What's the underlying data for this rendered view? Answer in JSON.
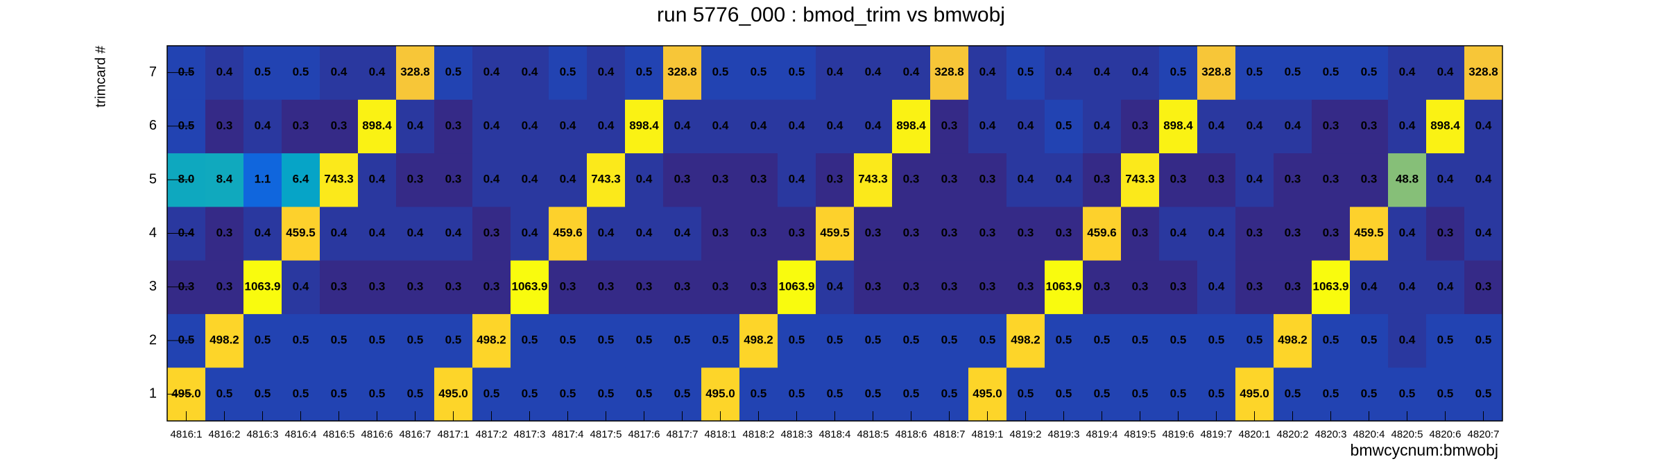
{
  "chart_data": {
    "type": "heatmap",
    "title": "run 5776_000 : bmod_trim vs bmwobj",
    "x_label": "bmwcycnum:bmwobj",
    "y_label": "trimcard #",
    "log_z": true,
    "categories": [
      "4816:1",
      "4816:2",
      "4816:3",
      "4816:4",
      "4816:5",
      "4816:6",
      "4816:7",
      "4817:1",
      "4817:2",
      "4817:3",
      "4817:4",
      "4817:5",
      "4817:6",
      "4817:7",
      "4818:1",
      "4818:2",
      "4818:3",
      "4818:4",
      "4818:5",
      "4818:6",
      "4818:7",
      "4819:1",
      "4819:2",
      "4819:3",
      "4819:4",
      "4819:5",
      "4819:6",
      "4819:7",
      "4820:1",
      "4820:2",
      "4820:3",
      "4820:4",
      "4820:5",
      "4820:6",
      "4820:7"
    ],
    "rows": [
      {
        "label": "1",
        "values": [
          495,
          0.5,
          0.5,
          0.5,
          0.5,
          0.5,
          0.5,
          495,
          0.5,
          0.5,
          0.5,
          0.5,
          0.5,
          0.5,
          495,
          0.5,
          0.5,
          0.5,
          0.5,
          0.5,
          0.5,
          495,
          0.5,
          0.5,
          0.5,
          0.5,
          0.5,
          0.5,
          495,
          0.5,
          0.5,
          0.5,
          0.5,
          0.5,
          0.5
        ],
        "value_labels": [
          "495.0",
          "0.5",
          "0.5",
          "0.5",
          "0.5",
          "0.5",
          "0.5",
          "495.0",
          "0.5",
          "0.5",
          "0.5",
          "0.5",
          "0.5",
          "0.5",
          "495.0",
          "0.5",
          "0.5",
          "0.5",
          "0.5",
          "0.5",
          "0.5",
          "495.0",
          "0.5",
          "0.5",
          "0.5",
          "0.5",
          "0.5",
          "0.5",
          "495.0",
          "0.5",
          "0.5",
          "0.5",
          "0.5",
          "0.5",
          "0.5"
        ]
      },
      {
        "label": "2",
        "values": [
          0.5,
          498.2,
          0.5,
          0.5,
          0.5,
          0.5,
          0.5,
          0.5,
          498.2,
          0.5,
          0.5,
          0.5,
          0.5,
          0.5,
          0.5,
          498.2,
          0.5,
          0.5,
          0.5,
          0.5,
          0.5,
          0.5,
          498.2,
          0.5,
          0.5,
          0.5,
          0.5,
          0.5,
          0.5,
          498.2,
          0.5,
          0.5,
          0.4,
          0.5,
          0.5
        ]
      },
      {
        "label": "3",
        "values": [
          0.3,
          0.3,
          1063.9,
          0.4,
          0.3,
          0.3,
          0.3,
          0.3,
          0.3,
          1063.9,
          0.3,
          0.3,
          0.3,
          0.3,
          0.3,
          0.3,
          1063.9,
          0.4,
          0.3,
          0.3,
          0.3,
          0.3,
          0.3,
          1063.9,
          0.3,
          0.3,
          0.3,
          0.4,
          0.3,
          0.3,
          1063.9,
          0.4,
          0.4,
          0.4,
          0.3
        ]
      },
      {
        "label": "4",
        "values": [
          0.4,
          0.3,
          0.4,
          459.5,
          0.4,
          0.4,
          0.4,
          0.4,
          0.3,
          0.4,
          459.6,
          0.4,
          0.4,
          0.4,
          0.3,
          0.3,
          0.3,
          459.5,
          0.3,
          0.3,
          0.3,
          0.3,
          0.3,
          0.3,
          459.6,
          0.3,
          0.4,
          0.4,
          0.3,
          0.3,
          0.3,
          459.5,
          0.4,
          0.3,
          0.4
        ]
      },
      {
        "label": "5",
        "values": [
          8,
          8.4,
          1.1,
          6.4,
          743.3,
          0.4,
          0.3,
          0.3,
          0.4,
          0.4,
          0.4,
          743.3,
          0.4,
          0.3,
          0.3,
          0.3,
          0.4,
          0.3,
          743.3,
          0.3,
          0.3,
          0.3,
          0.4,
          0.4,
          0.3,
          743.3,
          0.3,
          0.3,
          0.4,
          0.3,
          0.3,
          0.3,
          48.8,
          0.4,
          0.4
        ],
        "value_labels": [
          "8.0",
          "8.4",
          "1.1",
          "6.4",
          "743.3",
          "0.4",
          "0.3",
          "0.3",
          "0.4",
          "0.4",
          "0.4",
          "743.3",
          "0.4",
          "0.3",
          "0.3",
          "0.3",
          "0.4",
          "0.3",
          "743.3",
          "0.3",
          "0.3",
          "0.3",
          "0.4",
          "0.4",
          "0.3",
          "743.3",
          "0.3",
          "0.3",
          "0.4",
          "0.3",
          "0.3",
          "0.3",
          "48.8",
          "0.4",
          "0.4"
        ]
      },
      {
        "label": "6",
        "values": [
          0.5,
          0.3,
          0.4,
          0.3,
          0.3,
          898.4,
          0.4,
          0.3,
          0.4,
          0.4,
          0.4,
          0.4,
          898.4,
          0.4,
          0.4,
          0.4,
          0.4,
          0.4,
          0.4,
          898.4,
          0.3,
          0.4,
          0.4,
          0.5,
          0.4,
          0.3,
          898.4,
          0.4,
          0.4,
          0.4,
          0.3,
          0.3,
          0.4,
          898.4,
          0.4
        ]
      },
      {
        "label": "7",
        "values": [
          0.5,
          0.4,
          0.5,
          0.5,
          0.4,
          0.4,
          328.8,
          0.5,
          0.4,
          0.4,
          0.5,
          0.4,
          0.5,
          328.8,
          0.5,
          0.5,
          0.5,
          0.4,
          0.4,
          0.4,
          328.8,
          0.4,
          0.5,
          0.4,
          0.4,
          0.4,
          0.5,
          328.8,
          0.5,
          0.5,
          0.5,
          0.5,
          0.4,
          0.4,
          328.8
        ]
      }
    ]
  }
}
